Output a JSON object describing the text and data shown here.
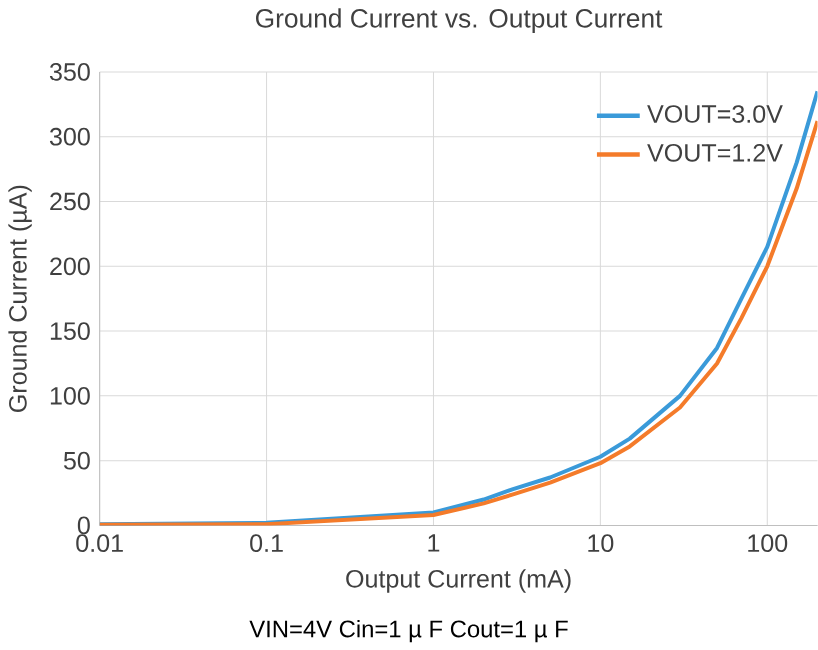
{
  "chart_data": {
    "type": "line",
    "title": "Ground Current vs. Output Current",
    "xlabel": "Output Current (mA)",
    "ylabel": "Ground Current (µA)",
    "annotations": [
      "VIN=4V Cin=1 µ F Cout=1 µ F"
    ],
    "x": [
      0.01,
      0.1,
      1,
      2,
      3,
      5,
      10,
      15,
      30,
      50,
      70,
      100,
      150,
      200
    ],
    "series": [
      {
        "name": "VOUT=3.0V",
        "color": "#3a9ad9",
        "values": [
          1,
          2,
          10,
          20,
          28,
          37,
          53,
          67,
          100,
          137,
          175,
          215,
          280,
          335
        ]
      },
      {
        "name": "VOUT=1.2V",
        "color": "#f47b2a",
        "values": [
          0.5,
          1,
          8,
          17,
          24,
          33,
          48,
          61,
          91,
          125,
          160,
          200,
          260,
          312
        ]
      }
    ],
    "log": "x",
    "xlim": [
      0.01,
      200
    ],
    "ylim": [
      0,
      350
    ],
    "xticks": [
      0.01,
      0.1,
      1,
      10,
      100
    ],
    "yticks": [
      0,
      50,
      100,
      150,
      200,
      250,
      300,
      350
    ],
    "grid": true,
    "legend": "top right",
    "marker": "none",
    "line_style": "solid"
  }
}
